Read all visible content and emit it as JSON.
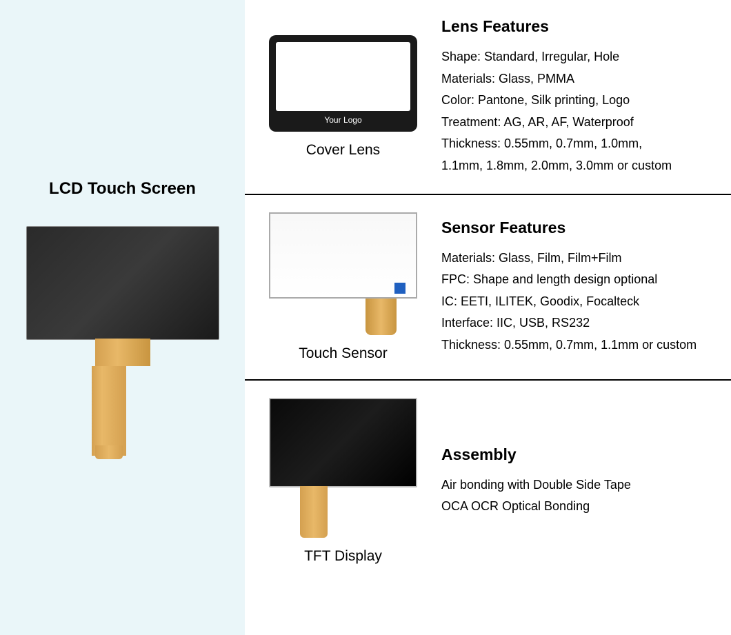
{
  "leftPanel": {
    "title": "LCD Touch Screen",
    "backgroundColor": "#eaf6f9"
  },
  "sections": [
    {
      "label": "Cover Lens",
      "logoText": "Your Logo",
      "title": "Lens Features",
      "items": [
        "Shape: Standard, Irregular, Hole",
        "Materials: Glass, PMMA",
        "Color: Pantone, Silk printing, Logo",
        "Treatment: AG, AR, AF, Waterproof",
        "Thickness: 0.55mm, 0.7mm, 1.0mm,",
        "1.1mm, 1.8mm, 2.0mm, 3.0mm or custom"
      ]
    },
    {
      "label": "Touch Sensor",
      "title": "Sensor Features",
      "items": [
        "Materials: Glass, Film, Film+Film",
        "FPC: Shape and length design optional",
        "IC: EETI, ILITEK, Goodix, Focalteck",
        "Interface: IIC, USB, RS232",
        "Thickness: 0.55mm, 0.7mm,  1.1mm or custom"
      ]
    },
    {
      "label": "TFT Display",
      "title": "Assembly",
      "items": [
        "Air bonding with Double Side Tape",
        "OCA OCR Optical Bonding"
      ]
    }
  ],
  "styling": {
    "titleFontSize": 23,
    "itemFontSize": 18,
    "labelFontSize": 21,
    "leftTitleFontSize": 24,
    "borderColor": "#000000",
    "textColor": "#000000",
    "coverLensBezelColor": "#1a1a1a",
    "fpcCableColor": "#e8b868",
    "sensorBorderColor": "#aaaaaa",
    "chipColor": "#2060c0"
  }
}
